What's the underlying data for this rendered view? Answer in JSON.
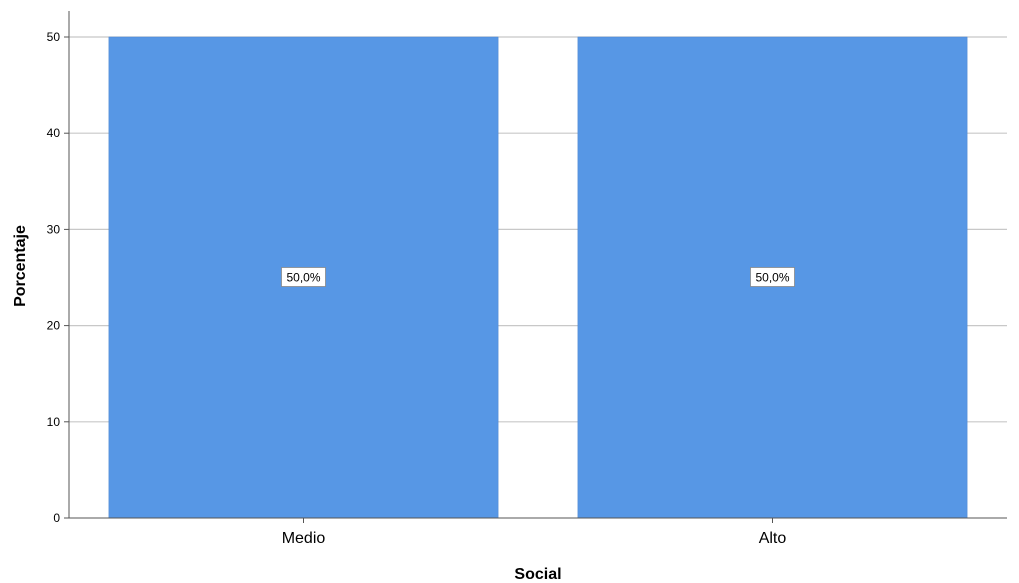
{
  "chart_data": {
    "type": "bar",
    "categories": [
      "Medio",
      "Alto"
    ],
    "values": [
      50,
      50
    ],
    "data_labels": [
      "50,0%",
      "50,0%"
    ],
    "xlabel": "Social",
    "ylabel": "Porcentaje",
    "ylim": [
      0,
      50
    ],
    "yticks": [
      0,
      10,
      20,
      30,
      40,
      50
    ],
    "ytick_labels": [
      "0",
      "10",
      "20",
      "30",
      "40",
      "50"
    ],
    "grid": true,
    "bar_color": "#5797e5"
  }
}
